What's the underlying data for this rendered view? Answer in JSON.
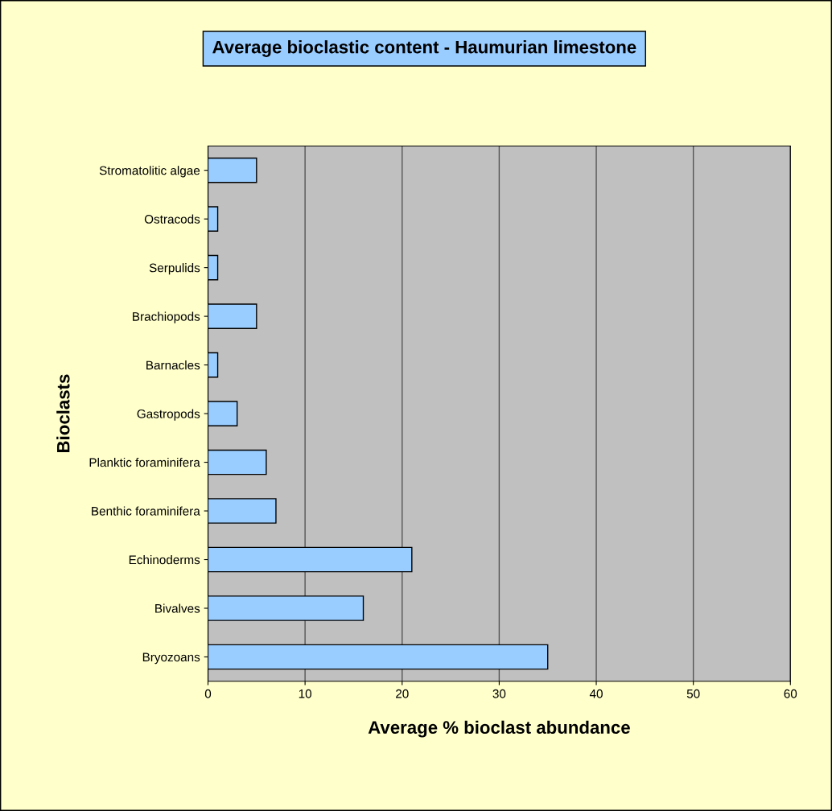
{
  "chart_data": {
    "type": "bar",
    "orientation": "horizontal",
    "title": "Average bioclastic content - Haumurian limestone",
    "xlabel": "Average % bioclast abundance",
    "ylabel": "Bioclasts",
    "categories": [
      "Stromatolitic algae",
      "Ostracods",
      "Serpulids",
      "Brachiopods",
      "Barnacles",
      "Gastropods",
      "Planktic foraminifera",
      "Benthic foraminifera",
      "Echinoderms",
      "Bivalves",
      "Bryozoans"
    ],
    "values": [
      5,
      1,
      1,
      5,
      1,
      3,
      6,
      7,
      21,
      16,
      35
    ],
    "color": "#99ccff",
    "xlim": [
      0,
      60
    ],
    "xticks": [
      0,
      10,
      20,
      30,
      40,
      50,
      60
    ],
    "grid": "x",
    "legend": false
  }
}
